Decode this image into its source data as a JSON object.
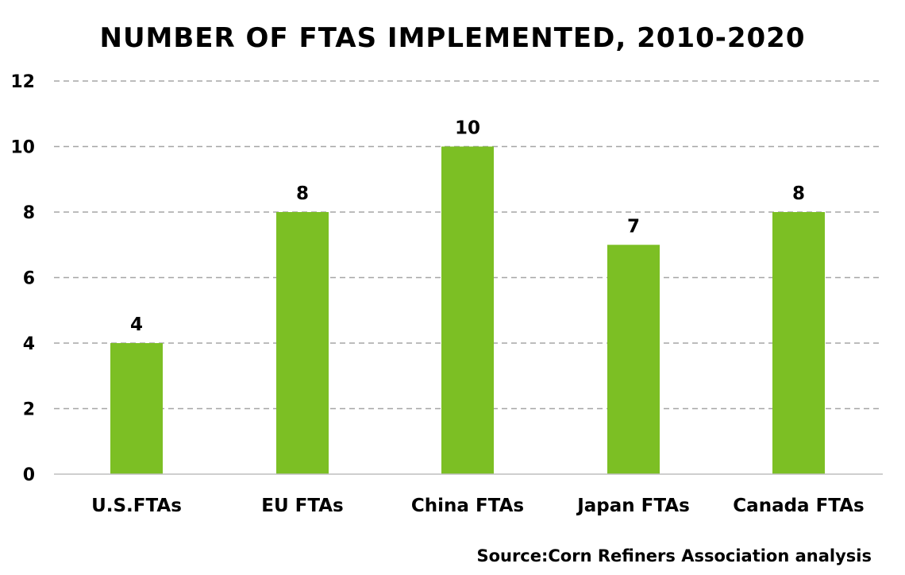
{
  "chart_data": {
    "type": "bar",
    "title": "NUMBER OF FTAS IMPLEMENTED, 2010-2020",
    "xlabel": "",
    "ylabel": "",
    "categories": [
      "U.S.FTAs",
      "EU FTAs",
      "China FTAs",
      "Japan FTAs",
      "Canada FTAs"
    ],
    "values": [
      4,
      8,
      10,
      7,
      8
    ],
    "data_labels": [
      "4",
      "8",
      "10",
      "7",
      "8"
    ],
    "ylim": [
      0,
      12
    ],
    "yticks": [
      0,
      2,
      4,
      6,
      8,
      10,
      12
    ],
    "ytick_labels": [
      "0",
      "2",
      "4",
      "6",
      "8",
      "10",
      "12"
    ],
    "grid": true,
    "grid_style": "dashed",
    "legend": "none",
    "bar_color": "#7cbf24",
    "source": "Source:Corn Refiners Association analysis"
  }
}
